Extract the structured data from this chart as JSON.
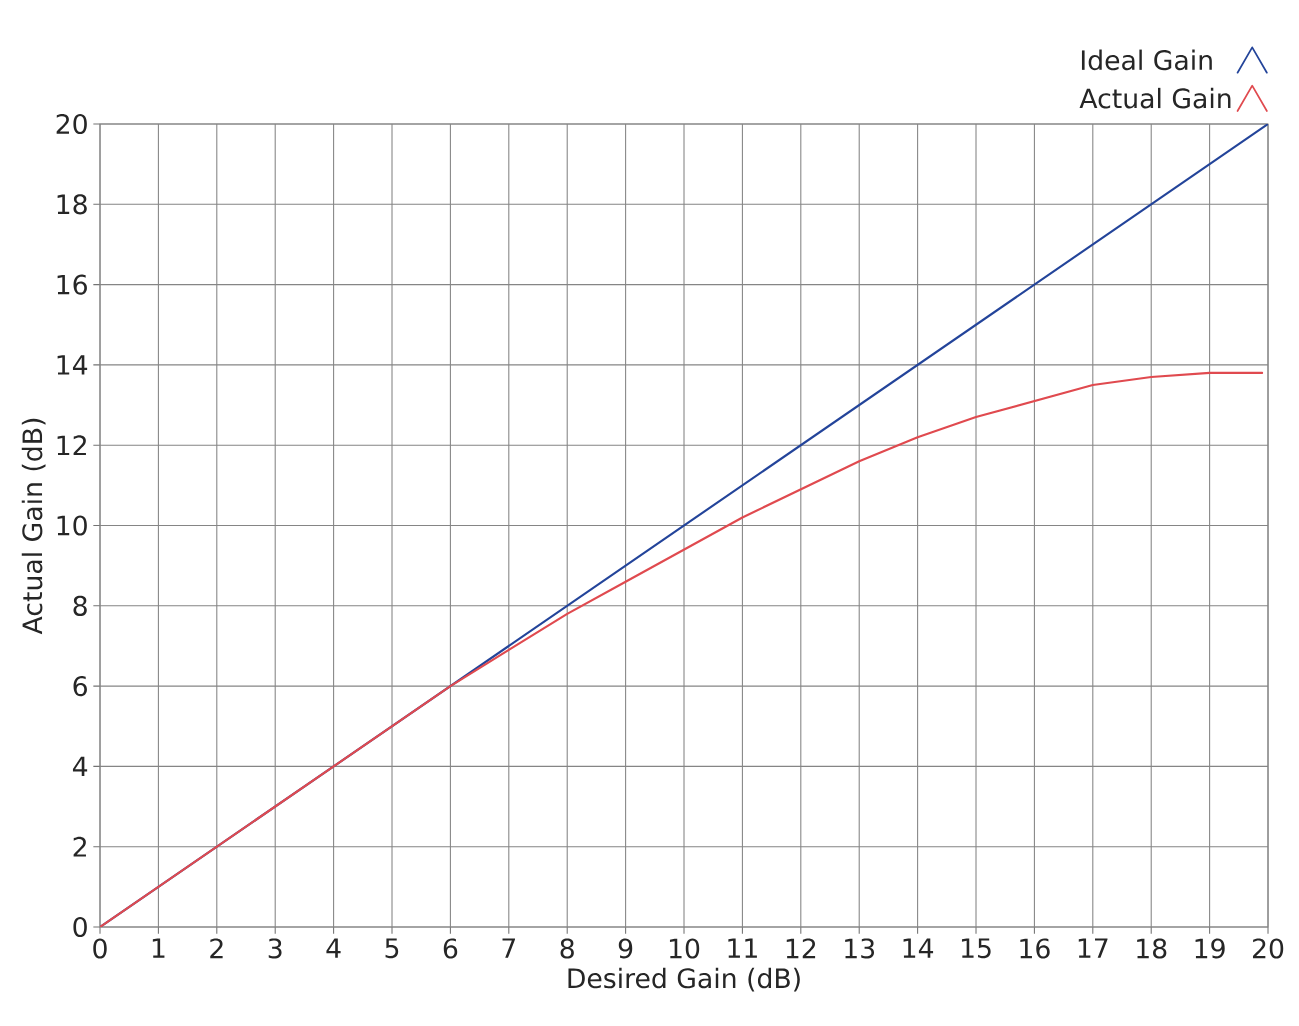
{
  "chart_data": {
    "type": "line",
    "xlabel": "Desired Gain (dB)",
    "ylabel": "Actual Gain (dB)",
    "xlim": [
      0,
      20
    ],
    "ylim": [
      0,
      20
    ],
    "xticks": [
      0,
      1,
      2,
      3,
      4,
      5,
      6,
      7,
      8,
      9,
      10,
      11,
      12,
      13,
      14,
      15,
      16,
      17,
      18,
      19,
      20
    ],
    "yticks": [
      0,
      2,
      4,
      6,
      8,
      10,
      12,
      14,
      16,
      18,
      20
    ],
    "grid": true,
    "legend": "top right",
    "series": [
      {
        "name": "Ideal Gain",
        "color": "#23449a",
        "x": [
          0,
          20
        ],
        "values": [
          0,
          20
        ]
      },
      {
        "name": "Actual Gain",
        "color": "#e04a4f",
        "x": [
          0,
          1,
          2,
          3,
          4,
          5,
          6,
          7,
          8,
          9,
          10,
          11,
          12,
          13,
          14,
          15,
          16,
          17,
          18,
          19,
          19.9
        ],
        "values": [
          0,
          1,
          2,
          3,
          4,
          5,
          6.0,
          6.9,
          7.8,
          8.6,
          9.4,
          10.2,
          10.9,
          11.6,
          12.2,
          12.7,
          13.1,
          13.5,
          13.7,
          13.8,
          13.8
        ]
      }
    ]
  }
}
